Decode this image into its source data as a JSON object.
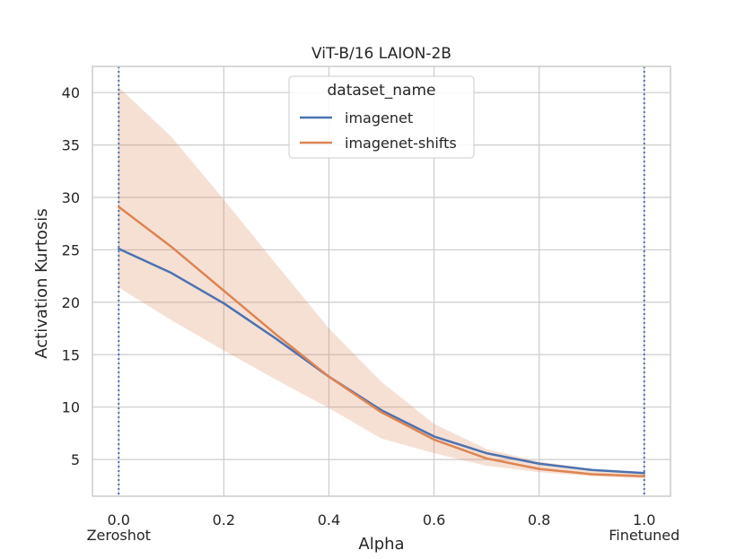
{
  "chart_data": {
    "type": "line",
    "title": "ViT-B/16 LAION-2B",
    "xlabel": "Alpha",
    "ylabel": "Activation Kurtosis",
    "xlim": [
      -0.05,
      1.05
    ],
    "ylim": [
      1.5,
      42.5
    ],
    "xticks": [
      0.0,
      0.2,
      0.4,
      0.6,
      0.8,
      1.0
    ],
    "xtick_labels": [
      "0.0",
      "0.2",
      "0.4",
      "0.6",
      "0.8",
      "1.0"
    ],
    "yticks": [
      5,
      10,
      15,
      20,
      25,
      30,
      35,
      40
    ],
    "ytick_labels": [
      "5",
      "10",
      "15",
      "20",
      "25",
      "30",
      "35",
      "40"
    ],
    "grid": true,
    "vlines": [
      {
        "x": 0.0,
        "label": "Zeroshot",
        "color": "#4c72b0",
        "style": "dotted"
      },
      {
        "x": 1.0,
        "label": "Finetuned",
        "color": "#4c72b0",
        "style": "dotted"
      }
    ],
    "legend": {
      "title": "dataset_name",
      "position": "top-center"
    },
    "x": [
      0.0,
      0.1,
      0.2,
      0.3,
      0.4,
      0.5,
      0.6,
      0.7,
      0.8,
      0.9,
      1.0
    ],
    "series": [
      {
        "name": "imagenet",
        "color": "#4c72b0",
        "values": [
          25.1,
          22.8,
          19.9,
          16.5,
          12.9,
          9.7,
          7.2,
          5.6,
          4.6,
          4.0,
          3.7
        ]
      },
      {
        "name": "imagenet-shifts",
        "color": "#dd8452",
        "values": [
          29.1,
          25.3,
          21.1,
          16.9,
          12.9,
          9.5,
          6.9,
          5.1,
          4.1,
          3.6,
          3.4
        ],
        "band_lower": [
          21.4,
          18.3,
          15.4,
          12.6,
          9.9,
          7.0,
          5.6,
          4.4,
          3.8,
          3.4,
          3.2
        ],
        "band_upper": [
          40.5,
          35.8,
          29.8,
          23.6,
          17.5,
          12.4,
          8.4,
          6.0,
          4.8,
          4.1,
          3.7
        ],
        "band_color": "#dd8452"
      }
    ]
  }
}
